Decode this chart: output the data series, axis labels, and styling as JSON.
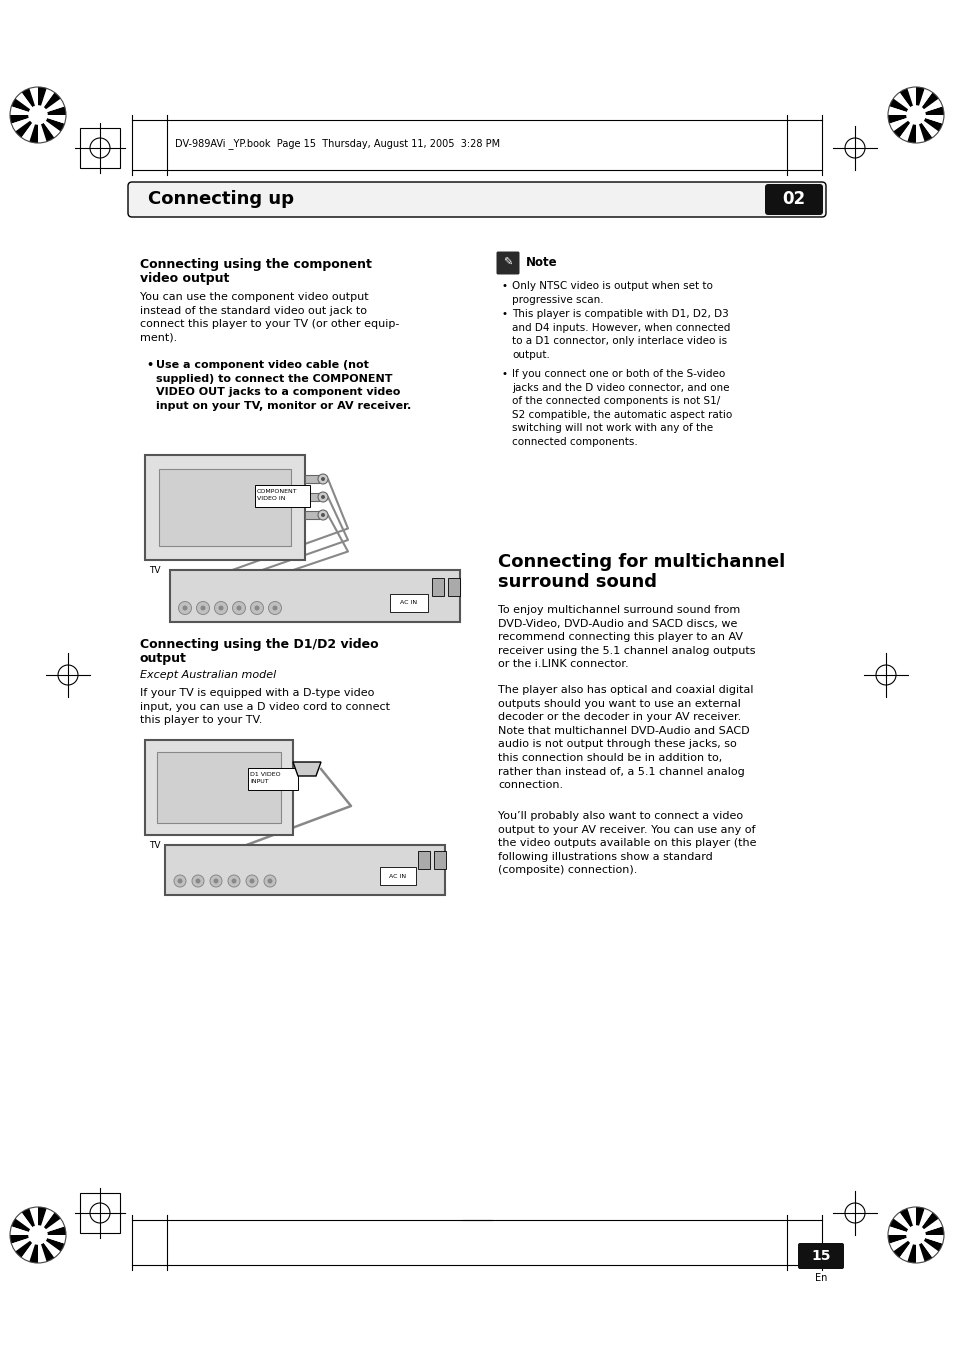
{
  "page_bg": "#ffffff",
  "header_bar_text": "Connecting up",
  "header_bar_number": "02",
  "header_file_text": "DV-989AVi _YP.book  Page 15  Thursday, August 11, 2005  3:28 PM",
  "section1_title_line1": "Connecting using the component",
  "section1_title_line2": "video output",
  "section1_body": "You can use the component video output\ninstead of the standard video out jack to\nconnect this player to your TV (or other equip-\nment).",
  "section1_bullet": "Use a component video cable (not\nsupplied) to connect the COMPONENT\nVIDEO OUT jacks to a component video\ninput on your TV, monitor or AV receiver.",
  "note_title": "Note",
  "note_bullet1": "Only NTSC video is output when set to\nprogressive scan.",
  "note_bullet2": "This player is compatible with D1, D2, D3\nand D4 inputs. However, when connected\nto a D1 connector, only interlace video is\noutput.",
  "note_bullet3": "If you connect one or both of the S-video\njacks and the D video connector, and one\nof the connected components is not S1/\nS2 compatible, the automatic aspect ratio\nswitching will not work with any of the\nconnected components.",
  "section2_title_line1": "Connecting using the D1/D2 video",
  "section2_title_line2": "output",
  "section2_subtitle": "Except Australian model",
  "section2_body": "If your TV is equipped with a D-type video\ninput, you can use a D video cord to connect\nthis player to your TV.",
  "section3_title_line1": "Connecting for multichannel",
  "section3_title_line2": "surround sound",
  "section3_body1": "To enjoy multichannel surround sound from\nDVD-Video, DVD-Audio and SACD discs, we\nrecommend connecting this player to an AV\nreceiver using the 5.1 channel analog outputs\nor the i.LINK connector.",
  "section3_body2": "The player also has optical and coaxial digital\noutputs should you want to use an external\ndecoder or the decoder in your AV receiver.\nNote that multichannel DVD-Audio and SACD\naudio is not output through these jacks, so\nthis connection should be in addition to,\nrather than instead of, a 5.1 channel analog\nconnection.",
  "section3_body3": "You’ll probably also want to connect a video\noutput to your AV receiver. You can use any of\nthe video outputs available on this player (the\nfollowing illustrations show a standard\n(composite) connection).",
  "page_number": "15",
  "page_number_sub": "En"
}
